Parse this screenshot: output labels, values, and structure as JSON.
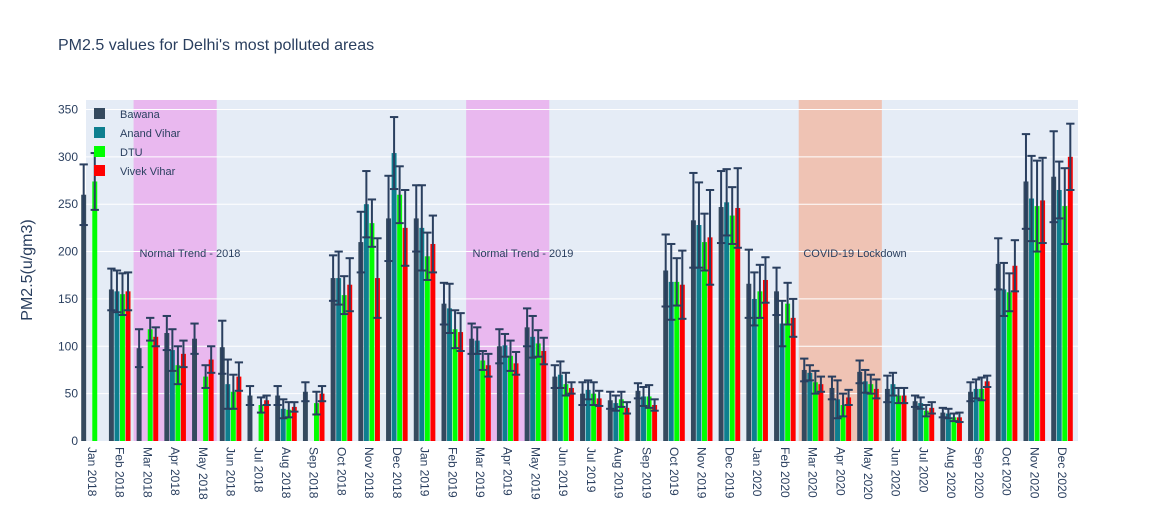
{
  "chart_data": {
    "type": "bar",
    "title": "PM2.5 values for Delhi's most polluted areas",
    "ylabel": "PM2.5(u/gm3)",
    "xlabel": "",
    "ylim": [
      0,
      360
    ],
    "yticks": [
      0,
      50,
      100,
      150,
      200,
      250,
      300,
      350
    ],
    "grid": true,
    "legend_position": "top-left",
    "categories": [
      "Jan 2018",
      "Feb 2018",
      "Mar 2018",
      "Apr 2018",
      "May 2018",
      "Jun 2018",
      "Jul 2018",
      "Aug 2018",
      "Sep 2018",
      "Oct 2018",
      "Nov 2018",
      "Dec 2018",
      "Jan 2019",
      "Feb 2019",
      "Mar 2019",
      "Apr 2019",
      "May 2019",
      "Jun 2019",
      "Jul 2019",
      "Aug 2019",
      "Sep 2019",
      "Oct 2019",
      "Nov 2019",
      "Dec 2019",
      "Jan 2020",
      "Feb 2020",
      "Mar 2020",
      "Apr 2020",
      "May 2020",
      "Jun 2020",
      "Jul 2020",
      "Aug 2020",
      "Sep 2020",
      "Oct 2020",
      "Nov 2020",
      "Dec 2020"
    ],
    "series": [
      {
        "name": "Bawana",
        "color": "#34495e",
        "values": [
          260,
          160,
          98,
          114,
          108,
          99,
          48,
          48,
          52,
          172,
          210,
          235,
          235,
          145,
          108,
          100,
          120,
          68,
          50,
          43,
          53,
          180,
          233,
          247,
          166,
          158,
          75,
          56,
          73,
          55,
          42,
          30,
          52,
          187,
          274,
          279
        ],
        "errors": [
          32,
          22,
          20,
          18,
          16,
          28,
          10,
          10,
          10,
          24,
          32,
          45,
          35,
          22,
          16,
          18,
          20,
          12,
          12,
          9,
          8,
          38,
          50,
          38,
          36,
          25,
          12,
          12,
          12,
          14,
          6,
          5,
          10,
          27,
          50,
          48
        ]
      },
      {
        "name": "Anand Vihar",
        "color": "#0e7f8f",
        "values": [
          0,
          158,
          0,
          96,
          0,
          60,
          0,
          34,
          0,
          172,
          250,
          304,
          225,
          140,
          106,
          101,
          110,
          70,
          54,
          40,
          47,
          168,
          228,
          252,
          150,
          124,
          72,
          44,
          63,
          60,
          40,
          29,
          55,
          160,
          256,
          265
        ],
        "errors": [
          0,
          22,
          0,
          22,
          0,
          26,
          0,
          10,
          0,
          28,
          35,
          38,
          45,
          26,
          14,
          12,
          22,
          14,
          10,
          8,
          10,
          40,
          45,
          35,
          28,
          24,
          8,
          20,
          12,
          12,
          6,
          5,
          10,
          28,
          45,
          30
        ]
      },
      {
        "name": "DTU",
        "color": "#00ff00",
        "values": [
          274,
          155,
          118,
          80,
          68,
          52,
          38,
          33,
          40,
          154,
          230,
          260,
          195,
          118,
          85,
          90,
          103,
          60,
          50,
          44,
          47,
          168,
          210,
          238,
          158,
          145,
          62,
          38,
          60,
          48,
          32,
          25,
          55,
          157,
          248,
          248
        ],
        "errors": [
          30,
          22,
          12,
          20,
          12,
          18,
          8,
          8,
          12,
          20,
          25,
          30,
          25,
          20,
          10,
          16,
          14,
          12,
          12,
          8,
          12,
          25,
          30,
          30,
          28,
          22,
          12,
          12,
          10,
          8,
          6,
          4,
          12,
          20,
          48,
          40
        ]
      },
      {
        "name": "Vivek Vihar",
        "color": "#ff0000",
        "values": [
          0,
          158,
          110,
          92,
          86,
          68,
          43,
          36,
          50,
          165,
          172,
          225,
          208,
          115,
          80,
          82,
          95,
          56,
          45,
          35,
          38,
          165,
          215,
          246,
          170,
          130,
          60,
          46,
          55,
          48,
          35,
          25,
          63,
          185,
          254,
          300
        ],
        "errors": [
          0,
          20,
          10,
          14,
          14,
          15,
          5,
          5,
          8,
          28,
          42,
          40,
          30,
          20,
          12,
          12,
          14,
          6,
          8,
          6,
          6,
          36,
          50,
          42,
          24,
          20,
          8,
          8,
          10,
          8,
          6,
          5,
          6,
          27,
          45,
          35
        ]
      }
    ],
    "shaded_regions": [
      {
        "label": "Normal Trend - 2018",
        "from": "Feb 2018",
        "to": "May 2018",
        "color": "#e9b8ef"
      },
      {
        "label": "Normal Trend - 2019",
        "from": "Feb 2019",
        "to": "May 2019",
        "color": "#e9b8ef"
      },
      {
        "label": "COVID-19 Lockdown",
        "from": "Feb 2020",
        "to": "May 2020",
        "color": "#efc3b4"
      }
    ]
  }
}
